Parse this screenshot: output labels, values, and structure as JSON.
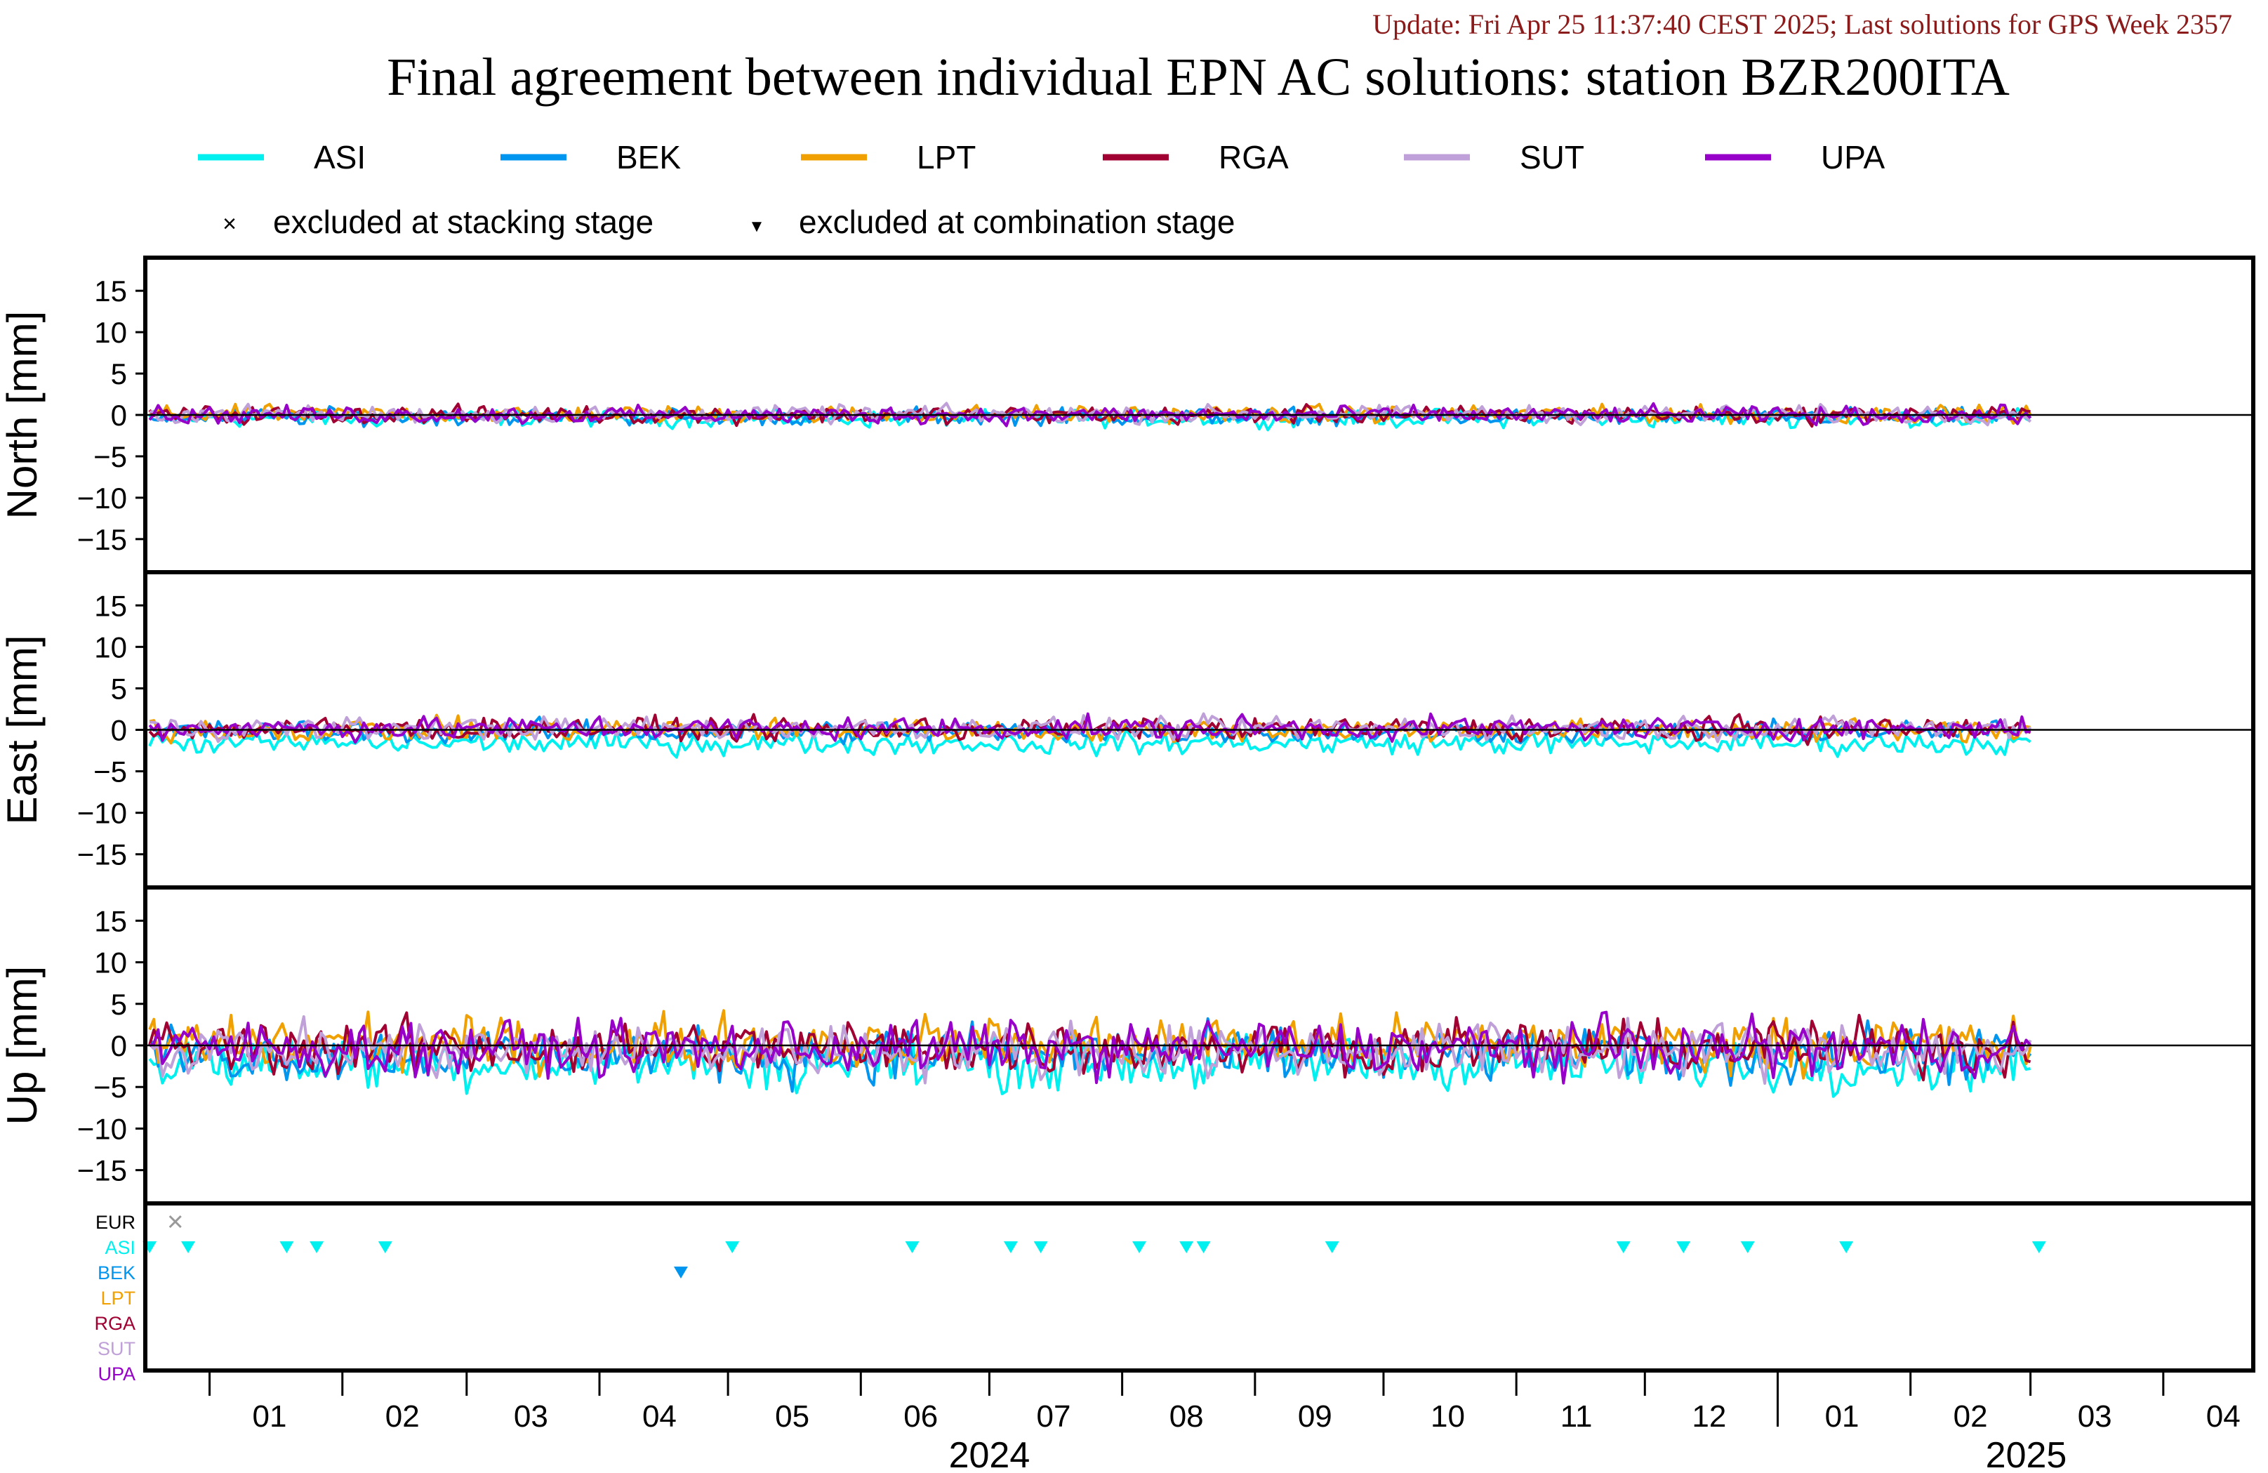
{
  "update_text": "Update: Fri Apr 25 11:37:40 CEST 2025; Last solutions for GPS Week 2357",
  "title": "Final agreement between individual EPN AC solutions: station BZR200ITA",
  "legend": {
    "series": [
      {
        "name": "ASI",
        "color": "#00f0f0"
      },
      {
        "name": "BEK",
        "color": "#0096f0"
      },
      {
        "name": "LPT",
        "color": "#f0a000"
      },
      {
        "name": "RGA",
        "color": "#a00032"
      },
      {
        "name": "SUT",
        "color": "#c0a0d8"
      },
      {
        "name": "UPA",
        "color": "#9600c8"
      }
    ],
    "markers": [
      {
        "symbol": "×",
        "label": "excluded at stacking stage"
      },
      {
        "symbol": "▼",
        "label": "excluded at combination stage"
      }
    ]
  },
  "chart_data": {
    "type": "line",
    "x_range": [
      "2023-12-17",
      "2025-04-22"
    ],
    "y_range": [
      -19,
      19
    ],
    "y_ticks": [
      15,
      10,
      5,
      0,
      -5,
      -10,
      -15
    ],
    "panels": [
      {
        "ylabel": "North [mm]",
        "amplitude": 0.7
      },
      {
        "ylabel": "East [mm]",
        "amplitude": 0.9
      },
      {
        "ylabel": "Up [mm]",
        "amplitude": 2.2
      }
    ],
    "series": [
      {
        "name": "ASI",
        "color": "#00f0f0",
        "offset_mm": {
          "North": -0.4,
          "East": -1.6,
          "Up": -2.0
        }
      },
      {
        "name": "BEK",
        "color": "#0096f0",
        "offset_mm": {
          "North": -0.2,
          "East": -0.2,
          "Up": -1.0
        }
      },
      {
        "name": "LPT",
        "color": "#f0a000",
        "offset_mm": {
          "North": 0.1,
          "East": 0.0,
          "Up": 0.2
        }
      },
      {
        "name": "RGA",
        "color": "#a00032",
        "offset_mm": {
          "North": 0.0,
          "East": 0.1,
          "Up": -0.2
        }
      },
      {
        "name": "SUT",
        "color": "#c0a0d8",
        "offset_mm": {
          "North": 0.1,
          "East": 0.2,
          "Up": -0.5
        }
      },
      {
        "name": "UPA",
        "color": "#9600c8",
        "offset_mm": {
          "North": 0.0,
          "East": 0.2,
          "Up": -0.3
        }
      }
    ],
    "start_date": "2023-12-18",
    "end_date": "2025-03-01",
    "exclusion_panel": {
      "rows": [
        {
          "label": "EUR",
          "color": "#000000"
        },
        {
          "label": "ASI",
          "color": "#00f0f0"
        },
        {
          "label": "BEK",
          "color": "#0096f0"
        },
        {
          "label": "LPT",
          "color": "#f0a000"
        },
        {
          "label": "RGA",
          "color": "#a00032"
        },
        {
          "label": "SUT",
          "color": "#c0a0d8"
        },
        {
          "label": "UPA",
          "color": "#9600c8"
        }
      ],
      "stacking_exclusions": [
        {
          "row": "EUR",
          "date": "2023-12-24"
        }
      ],
      "combination_exclusions": [
        {
          "row": "ASI",
          "date": "2023-12-18"
        },
        {
          "row": "ASI",
          "date": "2023-12-27"
        },
        {
          "row": "ASI",
          "date": "2024-01-19"
        },
        {
          "row": "ASI",
          "date": "2024-01-26"
        },
        {
          "row": "ASI",
          "date": "2024-02-11"
        },
        {
          "row": "BEK",
          "date": "2024-04-20"
        },
        {
          "row": "ASI",
          "date": "2024-05-02"
        },
        {
          "row": "ASI",
          "date": "2024-06-13"
        },
        {
          "row": "ASI",
          "date": "2024-07-06"
        },
        {
          "row": "ASI",
          "date": "2024-07-13"
        },
        {
          "row": "ASI",
          "date": "2024-08-05"
        },
        {
          "row": "ASI",
          "date": "2024-08-16"
        },
        {
          "row": "ASI",
          "date": "2024-08-20"
        },
        {
          "row": "ASI",
          "date": "2024-09-19"
        },
        {
          "row": "ASI",
          "date": "2024-11-26"
        },
        {
          "row": "ASI",
          "date": "2024-12-10"
        },
        {
          "row": "ASI",
          "date": "2024-12-25"
        },
        {
          "row": "ASI",
          "date": "2025-01-17"
        },
        {
          "row": "ASI",
          "date": "2025-03-03"
        }
      ]
    },
    "x_tick_labels": [
      {
        "label": "01",
        "date": "2024-01-15"
      },
      {
        "label": "02",
        "date": "2024-02-15"
      },
      {
        "label": "03",
        "date": "2024-03-16"
      },
      {
        "label": "04",
        "date": "2024-04-15"
      },
      {
        "label": "05",
        "date": "2024-05-16"
      },
      {
        "label": "06",
        "date": "2024-06-15"
      },
      {
        "label": "07",
        "date": "2024-07-16"
      },
      {
        "label": "08",
        "date": "2024-08-16"
      },
      {
        "label": "09",
        "date": "2024-09-15"
      },
      {
        "label": "10",
        "date": "2024-10-16"
      },
      {
        "label": "11",
        "date": "2024-11-15"
      },
      {
        "label": "12",
        "date": "2024-12-16"
      },
      {
        "label": "01",
        "date": "2025-01-16"
      },
      {
        "label": "02",
        "date": "2025-02-15"
      },
      {
        "label": "03",
        "date": "2025-03-16"
      },
      {
        "label": "04",
        "date": "2025-04-15"
      }
    ],
    "month_boundaries": [
      "2024-01-01",
      "2024-02-01",
      "2024-03-01",
      "2024-04-01",
      "2024-05-01",
      "2024-06-01",
      "2024-07-01",
      "2024-08-01",
      "2024-09-01",
      "2024-10-01",
      "2024-11-01",
      "2024-12-01",
      "2025-01-01",
      "2025-02-01",
      "2025-03-01",
      "2025-04-01"
    ],
    "year_labels": [
      {
        "label": "2024",
        "date": "2024-07-01"
      },
      {
        "label": "2025",
        "date": "2025-02-28"
      }
    ],
    "year_boundary": "2025-01-01"
  }
}
